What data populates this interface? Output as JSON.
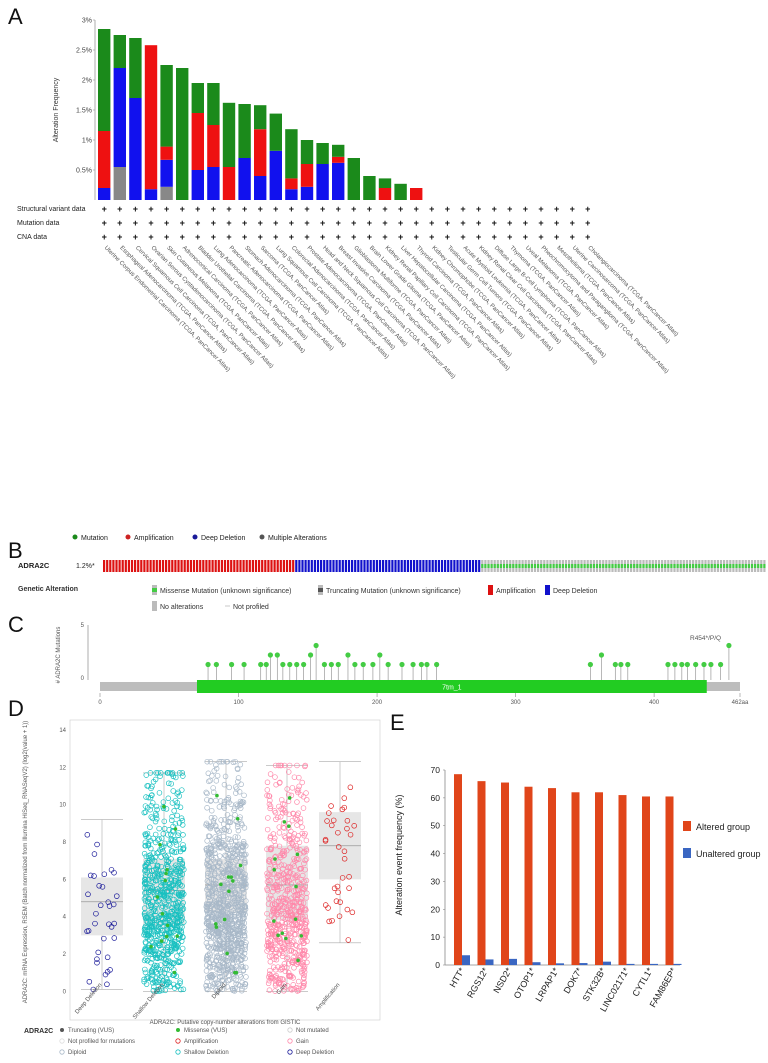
{
  "panels": {
    "A": "A",
    "B": "B",
    "C": "C",
    "D": "D",
    "E": "E"
  },
  "chart_data": [
    {
      "type": "bar",
      "panel": "A",
      "ylabel": "Alteration Frequency",
      "ylim": [
        0,
        3
      ],
      "yticks": [
        "0.5%",
        "1%",
        "1.5%",
        "2%",
        "2.5%",
        "3%"
      ],
      "row_labels": [
        "Structural variant data",
        "Mutation data",
        "CNA data"
      ],
      "row_marker": "+",
      "colors": {
        "mutation": "#1b8a1b",
        "amplification": "#ee1111",
        "deep_deletion": "#1111ee",
        "multiple": "#888888"
      },
      "categories": [
        "Uterine Corpus Endometrial Carcinoma (TCGA, PanCancer Atlas)",
        "Esophageal Adenocarcinoma (TCGA, PanCancer Atlas)",
        "Cervical Squamous Cell Carcinoma (TCGA, PanCancer Atlas)",
        "Ovarian Serous Cystadenocarcinoma (TCGA, PanCancer Atlas)",
        "Skin Cutaneous Melanoma (TCGA, PanCancer Atlas)",
        "Adrenocortical Carcinoma (TCGA, PanCancer Atlas)",
        "Bladder Urothelial Carcinoma (TCGA, PanCancer Atlas)",
        "Lung Adenocarcinoma (TCGA, PanCancer Atlas)",
        "Pancreatic Adenocarcinoma (TCGA, PanCancer Atlas)",
        "Stomach Adenocarcinoma (TCGA, PanCancer Atlas)",
        "Sarcoma (TCGA, PanCancer Atlas)",
        "Lung Squamous Cell Carcinoma (TCGA, PanCancer Atlas)",
        "Colorectal Adenocarcinoma (TCGA, PanCancer Atlas)",
        "Prostate Adenocarcinoma (TCGA, PanCancer Atlas)",
        "Head and Neck Squamous Cell Carcinoma (TCGA, PanCancer Atlas)",
        "Breast Invasive Carcinoma (TCGA, PanCancer Atlas)",
        "Glioblastoma Multiforme (TCGA, PanCancer Atlas)",
        "Brain Lower Grade Glioma (TCGA, PanCancer Atlas)",
        "Kidney Renal Papillary Cell Carcinoma (TCGA, PanCancer Atlas)",
        "Liver Hepatocellular Carcinoma (TCGA, PanCancer Atlas)",
        "Thyroid Carcinoma (TCGA, PanCancer Atlas)",
        "Kidney Chromophobe (TCGA, PanCancer Atlas)",
        "Testicular Germ Cell Tumors (TCGA, PanCancer Atlas)",
        "Acute Myeloid Leukemia (TCGA, PanCancer Atlas)",
        "Kidney Renal Clear Cell Carcinoma (TCGA, PanCancer Atlas)",
        "Diffuse Large B-Cell Lymphoma (TCGA, PanCancer Atlas)",
        "Thymoma (TCGA, PanCancer Atlas)",
        "Uveal Melanoma (TCGA, PanCancer Atlas)",
        "Pheochromocytoma and Paraganglioma (TCGA, PanCancer Atlas)",
        "Mesothelioma (TCGA, PanCancer Atlas)",
        "Uterine Carcinosarcoma (TCGA, PanCancer Atlas)",
        "Cholangiocarcinoma (TCGA, PanCancer Atlas)"
      ],
      "series": [
        {
          "name": "Multiple Alterations",
          "key": "multiple",
          "values": [
            0,
            0.55,
            0,
            0,
            0.22,
            0,
            0,
            0,
            0,
            0,
            0,
            0,
            0,
            0,
            0,
            0,
            0,
            0,
            0,
            0,
            0,
            0,
            0,
            0,
            0,
            0,
            0,
            0,
            0,
            0,
            0,
            0
          ]
        },
        {
          "name": "Deep Deletion",
          "key": "deep_deletion",
          "values": [
            0.2,
            1.65,
            1.7,
            0.18,
            0.45,
            0,
            0.5,
            0.55,
            0,
            0.7,
            0.4,
            0.82,
            0.18,
            0.22,
            0.6,
            0.62,
            0,
            0,
            0,
            0,
            0,
            0,
            0,
            0,
            0,
            0,
            0,
            0,
            0,
            0,
            0,
            0
          ]
        },
        {
          "name": "Amplification",
          "key": "amplification",
          "values": [
            0.95,
            0,
            0,
            2.4,
            0.22,
            0,
            0.95,
            0.7,
            0.55,
            0,
            0.78,
            0,
            0.18,
            0.38,
            0,
            0.1,
            0,
            0,
            0.2,
            0,
            0.2,
            0,
            0,
            0,
            0,
            0,
            0,
            0,
            0,
            0,
            0,
            0
          ]
        },
        {
          "name": "Mutation",
          "key": "mutation",
          "values": [
            1.7,
            0.55,
            1.0,
            0,
            1.36,
            2.2,
            0.5,
            0.7,
            1.07,
            0.9,
            0.4,
            0.62,
            0.82,
            0.4,
            0.35,
            0.2,
            0.7,
            0.4,
            0.16,
            0.27,
            0,
            0,
            0,
            0,
            0,
            0,
            0,
            0,
            0,
            0,
            0,
            0
          ]
        }
      ]
    },
    {
      "type": "oncoprint",
      "panel": "B",
      "gene": "ADRA2C",
      "frequency": "1.2%*",
      "legend_top": [
        {
          "label": "Mutation",
          "color": "#1b8a1b"
        },
        {
          "label": "Amplification",
          "color": "#cc2222"
        },
        {
          "label": "Deep Deletion",
          "color": "#1a1a99"
        },
        {
          "label": "Multiple Alterations",
          "color": "#555555"
        }
      ],
      "legend_title": "Genetic Alteration",
      "legend_items": [
        {
          "label": "Missense Mutation (unknown significance)",
          "kind": "missense"
        },
        {
          "label": "Truncating Mutation (unknown significance)",
          "kind": "truncating"
        },
        {
          "label": "Amplification",
          "kind": "amp"
        },
        {
          "label": "Deep Deletion",
          "kind": "del"
        },
        {
          "label": "No alterations",
          "kind": "none"
        },
        {
          "label": "Not profiled",
          "kind": "np"
        }
      ],
      "counts": {
        "amplification": 62,
        "deep_deletion": 60,
        "mutation": 92
      }
    },
    {
      "type": "lollipop",
      "panel": "C",
      "ylabel": "# ADRA2C Mutations",
      "ylim": [
        0,
        5
      ],
      "yticks": [
        "0",
        "5"
      ],
      "xlim": [
        0,
        462
      ],
      "xticks": [
        "0",
        "100",
        "200",
        "300",
        "400",
        "462aa"
      ],
      "domain": {
        "name": "7tm_1",
        "start": 70,
        "end": 438
      },
      "annotation": "R454*/P/Q",
      "mutations": [
        {
          "pos": 78,
          "count": 1
        },
        {
          "pos": 84,
          "count": 1
        },
        {
          "pos": 95,
          "count": 1
        },
        {
          "pos": 104,
          "count": 1
        },
        {
          "pos": 116,
          "count": 1
        },
        {
          "pos": 120,
          "count": 1
        },
        {
          "pos": 123,
          "count": 2
        },
        {
          "pos": 128,
          "count": 2
        },
        {
          "pos": 132,
          "count": 1
        },
        {
          "pos": 137,
          "count": 1
        },
        {
          "pos": 142,
          "count": 1
        },
        {
          "pos": 147,
          "count": 1
        },
        {
          "pos": 152,
          "count": 2
        },
        {
          "pos": 156,
          "count": 3
        },
        {
          "pos": 162,
          "count": 1
        },
        {
          "pos": 167,
          "count": 1
        },
        {
          "pos": 172,
          "count": 1
        },
        {
          "pos": 179,
          "count": 2
        },
        {
          "pos": 184,
          "count": 1
        },
        {
          "pos": 190,
          "count": 1
        },
        {
          "pos": 197,
          "count": 1
        },
        {
          "pos": 202,
          "count": 2
        },
        {
          "pos": 208,
          "count": 1
        },
        {
          "pos": 218,
          "count": 1
        },
        {
          "pos": 226,
          "count": 1
        },
        {
          "pos": 232,
          "count": 1
        },
        {
          "pos": 236,
          "count": 1
        },
        {
          "pos": 243,
          "count": 1
        },
        {
          "pos": 354,
          "count": 1
        },
        {
          "pos": 362,
          "count": 2
        },
        {
          "pos": 372,
          "count": 1
        },
        {
          "pos": 376,
          "count": 1
        },
        {
          "pos": 381,
          "count": 1
        },
        {
          "pos": 410,
          "count": 1
        },
        {
          "pos": 415,
          "count": 1
        },
        {
          "pos": 420,
          "count": 1
        },
        {
          "pos": 424,
          "count": 1
        },
        {
          "pos": 430,
          "count": 1
        },
        {
          "pos": 436,
          "count": 1
        },
        {
          "pos": 441,
          "count": 1
        },
        {
          "pos": 448,
          "count": 1
        },
        {
          "pos": 454,
          "count": 3
        }
      ]
    },
    {
      "type": "scatter",
      "panel": "D",
      "ylabel": "ADRA2C: mRNA Expression, RSEM (Batch normalized from Illumina HiSeq_RNASeqV2) (log2(value + 1))",
      "xlabel": "ADRA2C: Putative copy-number alterations from GISTIC",
      "ylim": [
        -1,
        14
      ],
      "yticks": [
        "0",
        "2",
        "4",
        "6",
        "8",
        "10",
        "12",
        "14"
      ],
      "categories": [
        "Deep Deletion",
        "Shallow Deletion",
        "Diploid",
        "Gain",
        "Amplification"
      ],
      "box": [
        {
          "q1": 3.0,
          "median": 4.8,
          "q3": 6.1,
          "min": 0.1,
          "max": 9.2
        },
        {
          "q1": 3.5,
          "median": 5.4,
          "q3": 7.1,
          "min": 0.0,
          "max": 11.7
        },
        {
          "q1": 4.2,
          "median": 5.7,
          "q3": 7.1,
          "min": 0.0,
          "max": 12.3
        },
        {
          "q1": 3.8,
          "median": 5.7,
          "q3": 7.8,
          "min": 0.0,
          "max": 12.1
        },
        {
          "q1": 6.0,
          "median": 7.8,
          "q3": 9.6,
          "min": 2.6,
          "max": 12.3
        }
      ],
      "point_colors": [
        "#1a1a99",
        "#19c0c0",
        "#a8b8c8",
        "#ff88aa",
        "#dd2222"
      ],
      "legend_title": "ADRA2C",
      "legend_items": [
        {
          "label": "Truncating (VUS)",
          "marker": "dot",
          "color": "#555555"
        },
        {
          "label": "Missense (VUS)",
          "marker": "dot",
          "color": "#33bb33"
        },
        {
          "label": "Not mutated",
          "marker": "ring",
          "color": "#cccccc"
        },
        {
          "label": "Not profiled for mutations",
          "marker": "ring",
          "color": "#dddddd"
        },
        {
          "label": "Amplification",
          "marker": "ring",
          "color": "#dd2222"
        },
        {
          "label": "Gain",
          "marker": "ring",
          "color": "#ff88aa"
        },
        {
          "label": "Diploid",
          "marker": "ring",
          "color": "#a8b8c8"
        },
        {
          "label": "Shallow Deletion",
          "marker": "ring",
          "color": "#19c0c0"
        },
        {
          "label": "Deep Deletion",
          "marker": "ring",
          "color": "#1a1a99"
        }
      ]
    },
    {
      "type": "bar",
      "panel": "E",
      "ylabel": "Alteration event frequency (%)",
      "ylim": [
        0,
        70
      ],
      "yticks": [
        "0",
        "10",
        "20",
        "30",
        "40",
        "50",
        "60",
        "70"
      ],
      "categories": [
        "HTT*",
        "RGS12*",
        "NSD2*",
        "OTOP1*",
        "LRPAP1*",
        "DOK7*",
        "STK32B*",
        "LINC02171*",
        "CYTL1*",
        "FAM86EP*"
      ],
      "series": [
        {
          "name": "Altered group",
          "color": "#e0451a",
          "values": [
            68.5,
            66,
            65.5,
            64,
            63.5,
            62,
            62,
            61,
            60.5,
            60.5
          ]
        },
        {
          "name": "Unaltered group",
          "color": "#3a66c2",
          "values": [
            3.5,
            2.0,
            2.2,
            1.0,
            0.6,
            0.7,
            1.2,
            0.4,
            0.4,
            0.4
          ]
        }
      ]
    }
  ]
}
